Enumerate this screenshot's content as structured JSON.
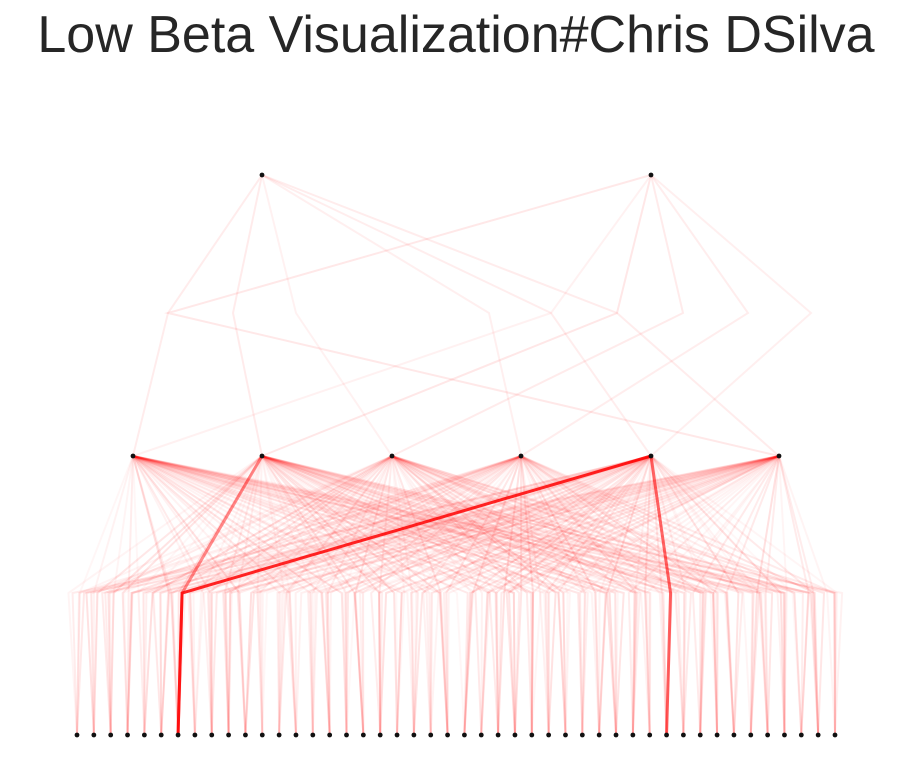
{
  "title": "Low Beta Visualization#Chris DSilva",
  "colors": {
    "edge": "#ff0000",
    "node": "#111111",
    "background": "#ffffff",
    "title": "#262626"
  },
  "layers": {
    "top_count": 2,
    "middle_count": 6,
    "bottom_count": 46
  },
  "highlighted_paths": [
    {
      "middle": 4,
      "bottom": 6,
      "opacity": 0.85
    },
    {
      "middle": 4,
      "bottom": 35,
      "opacity": 0.6
    },
    {
      "middle": 1,
      "bottom": 6,
      "opacity": 0.45
    }
  ]
}
